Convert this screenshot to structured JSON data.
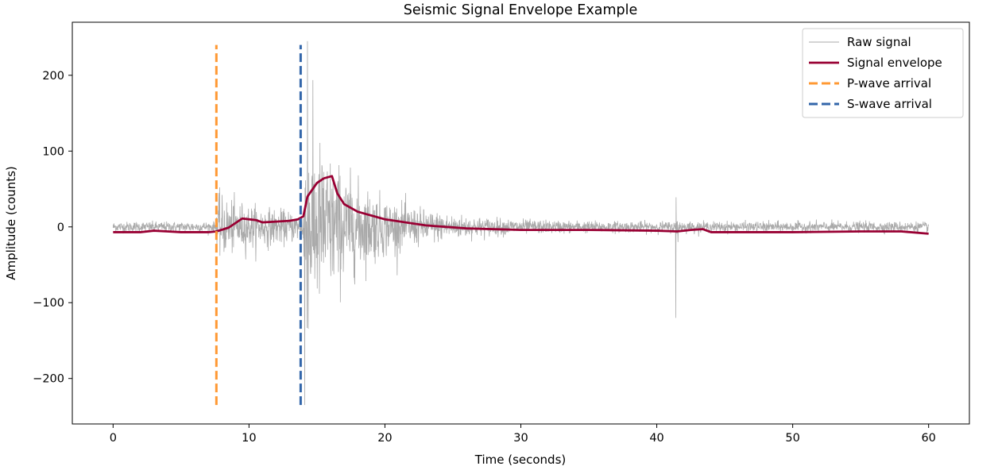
{
  "chart_data": {
    "type": "line",
    "title": "Seismic Signal Envelope Example",
    "xlabel": "Time (seconds)",
    "ylabel": "Amplitude (counts)",
    "xlim": [
      -3,
      63
    ],
    "ylim": [
      -260,
      270
    ],
    "x_ticks": [
      0,
      10,
      20,
      30,
      40,
      50,
      60
    ],
    "y_ticks": [
      -200,
      -100,
      0,
      100,
      200
    ],
    "x_tick_labels": [
      "0",
      "10",
      "20",
      "30",
      "40",
      "50",
      "60"
    ],
    "y_tick_labels": [
      "−200",
      "−100",
      "0",
      "100",
      "200"
    ],
    "grid": false,
    "legend_position": "top-right",
    "series": [
      {
        "name": "Raw signal",
        "style": "thin-line",
        "color": "#aaaaaa",
        "sample_rate_hz": 50,
        "duration_s": 60,
        "noise_amplitude": 6,
        "bursts": [
          {
            "t": 7.6,
            "amplitude": 30,
            "decay_s": 6
          },
          {
            "t": 14.0,
            "amplitude": 110,
            "decay_s": 4
          },
          {
            "t": 41.4,
            "amplitude": 50,
            "decay_s": 0.1
          }
        ],
        "peaks": [
          {
            "x": 14.3,
            "y": 245
          },
          {
            "x": 14.1,
            "y": -235
          },
          {
            "x": 41.4,
            "y": 55
          },
          {
            "x": 41.4,
            "y": -120
          }
        ]
      },
      {
        "name": "Signal envelope",
        "style": "line",
        "color": "#990033",
        "points": [
          [
            0,
            -7
          ],
          [
            2,
            -7
          ],
          [
            3,
            -5
          ],
          [
            4,
            -6
          ],
          [
            5,
            -7
          ],
          [
            6,
            -7
          ],
          [
            7,
            -7
          ],
          [
            7.6,
            -6
          ],
          [
            8.5,
            -1
          ],
          [
            9.5,
            11
          ],
          [
            10.5,
            9
          ],
          [
            11,
            6
          ],
          [
            12,
            7
          ],
          [
            13,
            8
          ],
          [
            13.6,
            10
          ],
          [
            14,
            14
          ],
          [
            14.3,
            40
          ],
          [
            15,
            58
          ],
          [
            15.5,
            64
          ],
          [
            16.1,
            67
          ],
          [
            16.5,
            44
          ],
          [
            17,
            30
          ],
          [
            18,
            20
          ],
          [
            20,
            10
          ],
          [
            23,
            2
          ],
          [
            26,
            -2
          ],
          [
            30,
            -4
          ],
          [
            35,
            -4
          ],
          [
            40,
            -5
          ],
          [
            41.5,
            -6
          ],
          [
            42.5,
            -4
          ],
          [
            43.4,
            -3
          ],
          [
            44,
            -7
          ],
          [
            50,
            -7
          ],
          [
            55,
            -6
          ],
          [
            58,
            -6
          ],
          [
            60,
            -9
          ]
        ]
      },
      {
        "name": "P-wave arrival",
        "style": "dashed-vline",
        "color": "#ff9933",
        "x": 7.6,
        "y_range": [
          -235,
          240
        ]
      },
      {
        "name": "S-wave arrival",
        "style": "dashed-vline",
        "color": "#3366aa",
        "x": 13.8,
        "y_range": [
          -235,
          240
        ]
      }
    ]
  }
}
